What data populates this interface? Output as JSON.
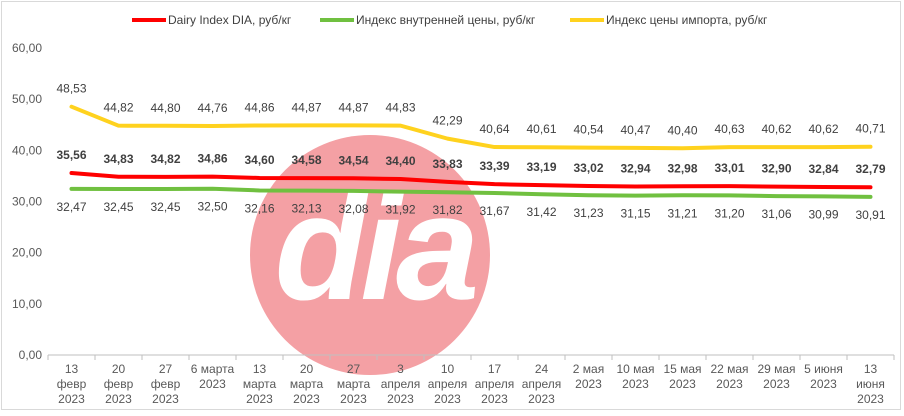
{
  "chart_data": {
    "type": "line",
    "title": "",
    "xlabel": "",
    "ylabel": "",
    "ylim": [
      0,
      60
    ],
    "yticks": [
      "0,00",
      "10,00",
      "20,00",
      "30,00",
      "40,00",
      "50,00",
      "60,00"
    ],
    "grid": false,
    "legend_position": "top",
    "watermark": "dia",
    "categories": [
      [
        "13",
        "февр",
        "2023"
      ],
      [
        "20",
        "февр",
        "2023"
      ],
      [
        "27",
        "февр",
        "2023"
      ],
      [
        "6 марта",
        "2023"
      ],
      [
        "13",
        "марта",
        "2023"
      ],
      [
        "20",
        "марта",
        "2023"
      ],
      [
        "27",
        "марта",
        "2023"
      ],
      [
        "3",
        "апреля",
        "2023"
      ],
      [
        "10",
        "апреля",
        "2023"
      ],
      [
        "17",
        "апреля",
        "2023"
      ],
      [
        "24",
        "апреля",
        "2023"
      ],
      [
        "2 мая",
        "2023"
      ],
      [
        "10 мая",
        "2023"
      ],
      [
        "15 мая",
        "2023"
      ],
      [
        "22 мая",
        "2023"
      ],
      [
        "29 мая",
        "2023"
      ],
      [
        "5 июня",
        "2023"
      ],
      [
        "13",
        "июня",
        "2023"
      ]
    ],
    "series": [
      {
        "name": "Dairy Index DIA,  руб/кг",
        "color": "#ff0000",
        "label_position": "above",
        "bold_labels": true,
        "values": [
          35.56,
          34.83,
          34.82,
          34.86,
          34.6,
          34.58,
          34.54,
          34.4,
          33.83,
          33.39,
          33.19,
          33.02,
          32.94,
          32.98,
          33.01,
          32.9,
          32.84,
          32.79
        ],
        "labels": [
          "35,56",
          "34,83",
          "34,82",
          "34,86",
          "34,60",
          "34,58",
          "34,54",
          "34,40",
          "33,83",
          "33,39",
          "33,19",
          "33,02",
          "32,94",
          "32,98",
          "33,01",
          "32,90",
          "32,84",
          "32,79"
        ]
      },
      {
        "name": "Индекс внутренней цены, руб/кг",
        "color": "#70c040",
        "label_position": "below",
        "bold_labels": false,
        "values": [
          32.47,
          32.45,
          32.45,
          32.5,
          32.16,
          32.13,
          32.08,
          31.92,
          31.82,
          31.67,
          31.42,
          31.23,
          31.15,
          31.21,
          31.2,
          31.06,
          30.99,
          30.91
        ],
        "labels": [
          "32,47",
          "32,45",
          "32,45",
          "32,50",
          "32,16",
          "32,13",
          "32,08",
          "31,92",
          "31,82",
          "31,67",
          "31,42",
          "31,23",
          "31,15",
          "31,21",
          "31,20",
          "31,06",
          "30,99",
          "30,91"
        ]
      },
      {
        "name": "Индекс цены импорта, руб/кг",
        "color": "#ffd21e",
        "label_position": "above",
        "bold_labels": false,
        "values": [
          48.53,
          44.82,
          44.8,
          44.76,
          44.86,
          44.87,
          44.87,
          44.83,
          42.29,
          40.64,
          40.61,
          40.54,
          40.47,
          40.4,
          40.63,
          40.62,
          40.62,
          40.71
        ],
        "labels": [
          "48,53",
          "44,82",
          "44,80",
          "44,76",
          "44,86",
          "44,87",
          "44,87",
          "44,83",
          "42,29",
          "40,64",
          "40,61",
          "40,54",
          "40,47",
          "40,40",
          "40,63",
          "40,62",
          "40,62",
          "40,71"
        ]
      }
    ]
  }
}
